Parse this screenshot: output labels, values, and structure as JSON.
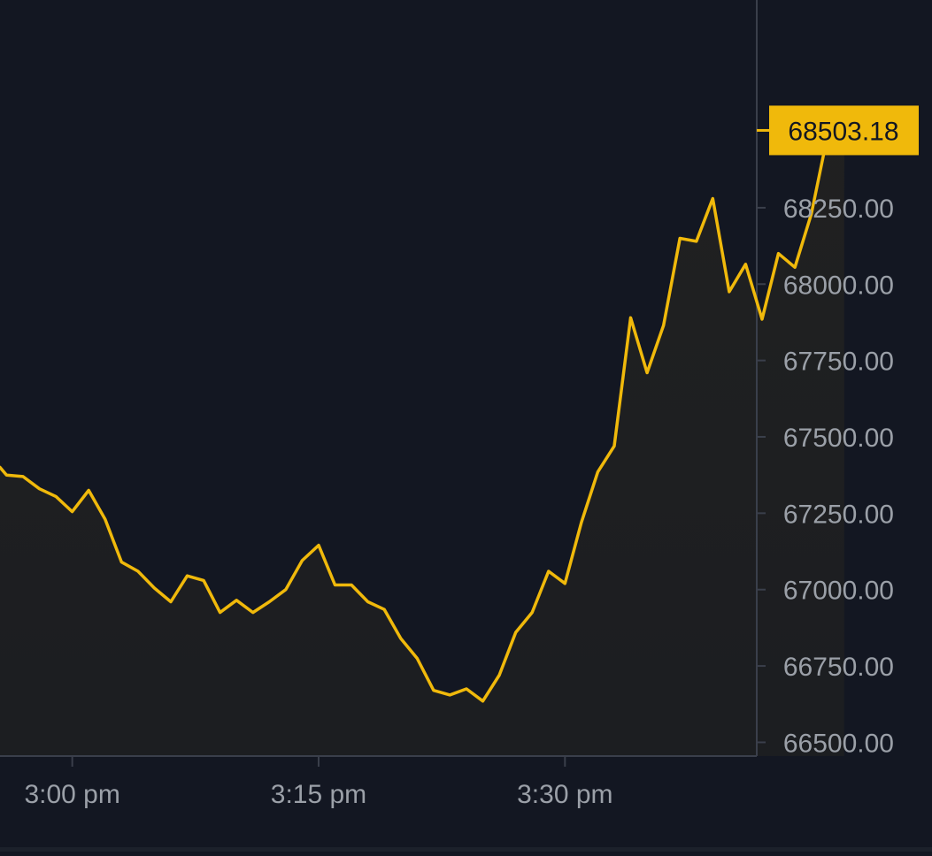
{
  "theme": {
    "background": "#131722",
    "line_color": "#F0B90B",
    "axis_color": "#3A3F4B",
    "tick_text_color": "#9BA0A8",
    "price_tag_bg": "#F0B90B",
    "price_tag_text": "#131722"
  },
  "price_tag": {
    "label": "68503.18",
    "value": 68503.18
  },
  "chart_data": {
    "type": "area",
    "title": "",
    "xlabel": "",
    "ylabel": "",
    "x_unit": "minutes_past_14:00",
    "x_range": [
      55.6,
      101.3
    ],
    "ylim": [
      66455,
      68930
    ],
    "y_ticks": [
      {
        "value": 66500,
        "label": "66500.00"
      },
      {
        "value": 66750,
        "label": "66750.00"
      },
      {
        "value": 67000,
        "label": "67000.00"
      },
      {
        "value": 67250,
        "label": "67250.00"
      },
      {
        "value": 67500,
        "label": "67500.00"
      },
      {
        "value": 67750,
        "label": "67750.00"
      },
      {
        "value": 68000,
        "label": "68000.00"
      },
      {
        "value": 68250,
        "label": "68250.00"
      }
    ],
    "x_ticks": [
      {
        "value": 60,
        "label": "3:00 pm"
      },
      {
        "value": 75,
        "label": "3:15 pm"
      },
      {
        "value": 90,
        "label": "3:30 pm"
      }
    ],
    "grid": false,
    "series": [
      {
        "values": [
          [
            55.6,
            67400
          ],
          [
            56.0,
            67375
          ],
          [
            57.0,
            67370
          ],
          [
            58.0,
            67330
          ],
          [
            59.0,
            67305
          ],
          [
            60.0,
            67255
          ],
          [
            61.0,
            67325
          ],
          [
            62.0,
            67230
          ],
          [
            63.0,
            67090
          ],
          [
            64.0,
            67060
          ],
          [
            65.0,
            67005
          ],
          [
            66.0,
            66960
          ],
          [
            67.0,
            67045
          ],
          [
            68.0,
            67030
          ],
          [
            69.0,
            66925
          ],
          [
            70.0,
            66965
          ],
          [
            71.0,
            66925
          ],
          [
            72.0,
            66960
          ],
          [
            73.0,
            67000
          ],
          [
            74.0,
            67095
          ],
          [
            75.0,
            67145
          ],
          [
            76.0,
            67015
          ],
          [
            77.0,
            67015
          ],
          [
            78.0,
            66960
          ],
          [
            79.0,
            66935
          ],
          [
            80.0,
            66840
          ],
          [
            81.0,
            66775
          ],
          [
            82.0,
            66670
          ],
          [
            83.0,
            66655
          ],
          [
            84.0,
            66675
          ],
          [
            85.0,
            66635
          ],
          [
            86.0,
            66720
          ],
          [
            87.0,
            66860
          ],
          [
            88.0,
            66925
          ],
          [
            89.0,
            67060
          ],
          [
            90.0,
            67020
          ],
          [
            91.0,
            67220
          ],
          [
            92.0,
            67385
          ],
          [
            93.0,
            67470
          ],
          [
            94.0,
            67890
          ],
          [
            95.0,
            67710
          ],
          [
            96.0,
            67865
          ],
          [
            97.0,
            68150
          ],
          [
            98.0,
            68140
          ],
          [
            99.0,
            68280
          ],
          [
            100.0,
            67975
          ],
          [
            101.0,
            68065
          ],
          [
            102.0,
            67885
          ],
          [
            103.0,
            68100
          ],
          [
            104.0,
            68055
          ],
          [
            105.0,
            68230
          ],
          [
            106.0,
            68490
          ],
          [
            107.0,
            68510
          ]
        ]
      }
    ]
  }
}
